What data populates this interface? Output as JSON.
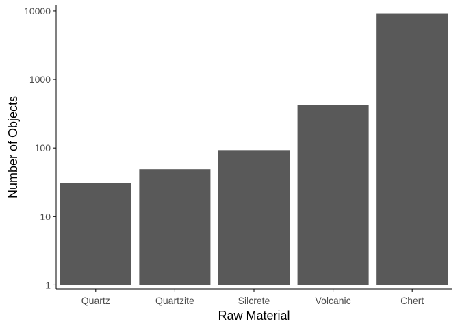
{
  "chart_data": {
    "type": "bar",
    "categories": [
      "Quartz",
      "Quartzite",
      "Silcrete",
      "Volcanic",
      "Chert"
    ],
    "values": [
      31,
      49,
      93,
      425,
      9200
    ],
    "title": "",
    "xlabel": "Raw Material",
    "ylabel": "Number of Objects",
    "yscale": "log10",
    "ylim": [
      0.88,
      12000
    ],
    "yticks": [
      1,
      10,
      100,
      1000,
      10000
    ],
    "yticklabels": [
      "1",
      "10",
      "100",
      "1000",
      "10000"
    ],
    "bar_baseline": 1,
    "grid": false,
    "legend": "none",
    "colors": {
      "bar": "#595959",
      "axis": "#000000",
      "tick_text": "#4d4d4d",
      "background": "#ffffff"
    }
  }
}
